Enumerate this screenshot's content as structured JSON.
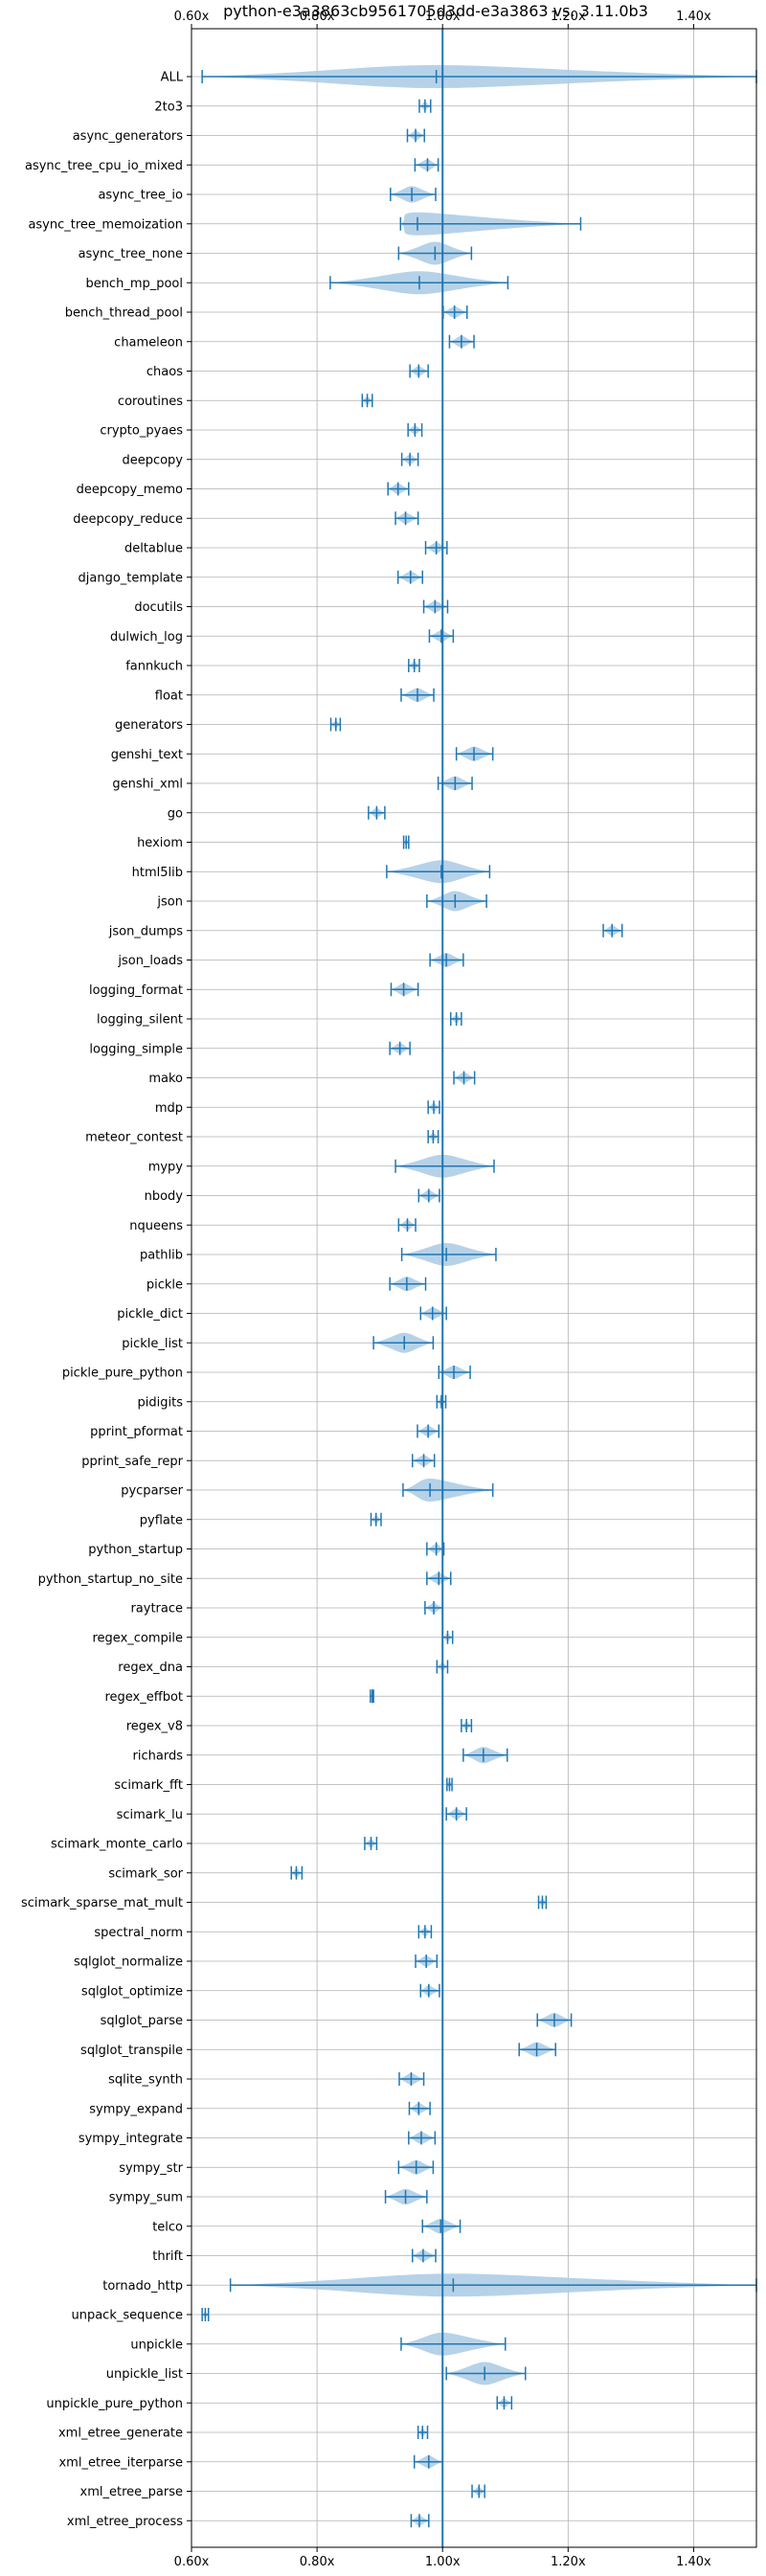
{
  "chart_data": {
    "type": "violin",
    "title": "python-e3a3863cb9561705d3dd-e3a3863 vs. 3.11.0b3",
    "xlim": [
      0.6,
      1.5
    ],
    "xticks": [
      0.6,
      0.8,
      1.0,
      1.2,
      1.4
    ],
    "xtick_labels": [
      "0.60x",
      "0.80x",
      "1.00x",
      "1.20x",
      "1.40x"
    ],
    "reference_line": 1.0,
    "grid": true,
    "colors": {
      "body": "#aecde6",
      "line": "#1f77b4",
      "reference": "#1f77b4"
    },
    "benchmarks": [
      {
        "name": "ALL",
        "min": 0.617,
        "max": 1.5,
        "median": 0.99
      },
      {
        "name": "2to3",
        "min": 0.963,
        "max": 0.981,
        "median": 0.972
      },
      {
        "name": "async_generators",
        "min": 0.944,
        "max": 0.971,
        "median": 0.957
      },
      {
        "name": "async_tree_cpu_io_mixed",
        "min": 0.956,
        "max": 0.993,
        "median": 0.976
      },
      {
        "name": "async_tree_io",
        "min": 0.917,
        "max": 0.989,
        "median": 0.951
      },
      {
        "name": "async_tree_memoization",
        "min": 0.933,
        "max": 1.22,
        "median": 0.96
      },
      {
        "name": "async_tree_none",
        "min": 0.93,
        "max": 1.046,
        "median": 0.988
      },
      {
        "name": "bench_mp_pool",
        "min": 0.821,
        "max": 1.104,
        "median": 0.963
      },
      {
        "name": "bench_thread_pool",
        "min": 1.001,
        "max": 1.039,
        "median": 1.019
      },
      {
        "name": "chameleon",
        "min": 1.011,
        "max": 1.05,
        "median": 1.03
      },
      {
        "name": "chaos",
        "min": 0.948,
        "max": 0.977,
        "median": 0.962
      },
      {
        "name": "coroutines",
        "min": 0.872,
        "max": 0.888,
        "median": 0.88
      },
      {
        "name": "crypto_pyaes",
        "min": 0.945,
        "max": 0.967,
        "median": 0.956
      },
      {
        "name": "deepcopy",
        "min": 0.935,
        "max": 0.961,
        "median": 0.948
      },
      {
        "name": "deepcopy_memo",
        "min": 0.913,
        "max": 0.946,
        "median": 0.929
      },
      {
        "name": "deepcopy_reduce",
        "min": 0.925,
        "max": 0.961,
        "median": 0.941
      },
      {
        "name": "deltablue",
        "min": 0.973,
        "max": 1.007,
        "median": 0.99
      },
      {
        "name": "django_template",
        "min": 0.929,
        "max": 0.968,
        "median": 0.949
      },
      {
        "name": "docutils",
        "min": 0.97,
        "max": 1.008,
        "median": 0.988
      },
      {
        "name": "dulwich_log",
        "min": 0.979,
        "max": 1.017,
        "median": 0.998
      },
      {
        "name": "fannkuch",
        "min": 0.946,
        "max": 0.963,
        "median": 0.955
      },
      {
        "name": "float",
        "min": 0.934,
        "max": 0.986,
        "median": 0.96
      },
      {
        "name": "generators",
        "min": 0.822,
        "max": 0.837,
        "median": 0.83
      },
      {
        "name": "genshi_text",
        "min": 1.022,
        "max": 1.08,
        "median": 1.05
      },
      {
        "name": "genshi_xml",
        "min": 0.993,
        "max": 1.047,
        "median": 1.02
      },
      {
        "name": "go",
        "min": 0.882,
        "max": 0.908,
        "median": 0.895
      },
      {
        "name": "hexiom",
        "min": 0.938,
        "max": 0.946,
        "median": 0.942
      },
      {
        "name": "html5lib",
        "min": 0.911,
        "max": 1.075,
        "median": 0.998
      },
      {
        "name": "json",
        "min": 0.975,
        "max": 1.07,
        "median": 1.02
      },
      {
        "name": "json_dumps",
        "min": 1.256,
        "max": 1.286,
        "median": 1.27
      },
      {
        "name": "json_loads",
        "min": 0.98,
        "max": 1.033,
        "median": 1.006
      },
      {
        "name": "logging_format",
        "min": 0.918,
        "max": 0.961,
        "median": 0.938
      },
      {
        "name": "logging_silent",
        "min": 1.013,
        "max": 1.03,
        "median": 1.022
      },
      {
        "name": "logging_simple",
        "min": 0.916,
        "max": 0.948,
        "median": 0.932
      },
      {
        "name": "mako",
        "min": 1.018,
        "max": 1.051,
        "median": 1.034
      },
      {
        "name": "mdp",
        "min": 0.977,
        "max": 0.995,
        "median": 0.986
      },
      {
        "name": "meteor_contest",
        "min": 0.977,
        "max": 0.993,
        "median": 0.985
      },
      {
        "name": "mypy",
        "min": 0.925,
        "max": 1.082,
        "median": 1.0
      },
      {
        "name": "nbody",
        "min": 0.962,
        "max": 0.995,
        "median": 0.978
      },
      {
        "name": "nqueens",
        "min": 0.93,
        "max": 0.957,
        "median": 0.944
      },
      {
        "name": "pathlib",
        "min": 0.935,
        "max": 1.085,
        "median": 1.006
      },
      {
        "name": "pickle",
        "min": 0.916,
        "max": 0.973,
        "median": 0.943
      },
      {
        "name": "pickle_dict",
        "min": 0.965,
        "max": 1.006,
        "median": 0.984
      },
      {
        "name": "pickle_list",
        "min": 0.89,
        "max": 0.985,
        "median": 0.939
      },
      {
        "name": "pickle_pure_python",
        "min": 0.994,
        "max": 1.044,
        "median": 1.018
      },
      {
        "name": "pidigits",
        "min": 0.991,
        "max": 1.005,
        "median": 0.998
      },
      {
        "name": "pprint_pformat",
        "min": 0.96,
        "max": 0.994,
        "median": 0.977
      },
      {
        "name": "pprint_safe_repr",
        "min": 0.952,
        "max": 0.987,
        "median": 0.97
      },
      {
        "name": "pycparser",
        "min": 0.937,
        "max": 1.08,
        "median": 0.98
      },
      {
        "name": "pyflate",
        "min": 0.886,
        "max": 0.902,
        "median": 0.894
      },
      {
        "name": "python_startup",
        "min": 0.975,
        "max": 1.002,
        "median": 0.99
      },
      {
        "name": "python_startup_no_site",
        "min": 0.975,
        "max": 1.013,
        "median": 0.994
      },
      {
        "name": "raytrace",
        "min": 0.972,
        "max": 1.0,
        "median": 0.986
      },
      {
        "name": "regex_compile",
        "min": 1.0,
        "max": 1.016,
        "median": 1.008
      },
      {
        "name": "regex_dna",
        "min": 0.991,
        "max": 1.008,
        "median": 1.0
      },
      {
        "name": "regex_effbot",
        "min": 0.885,
        "max": 0.89,
        "median": 0.888
      },
      {
        "name": "regex_v8",
        "min": 1.03,
        "max": 1.046,
        "median": 1.038
      },
      {
        "name": "richards",
        "min": 1.033,
        "max": 1.103,
        "median": 1.065
      },
      {
        "name": "scimark_fft",
        "min": 1.007,
        "max": 1.015,
        "median": 1.011
      },
      {
        "name": "scimark_lu",
        "min": 1.006,
        "max": 1.038,
        "median": 1.022
      },
      {
        "name": "scimark_monte_carlo",
        "min": 0.876,
        "max": 0.895,
        "median": 0.886
      },
      {
        "name": "scimark_sor",
        "min": 0.759,
        "max": 0.776,
        "median": 0.767
      },
      {
        "name": "scimark_sparse_mat_mult",
        "min": 1.153,
        "max": 1.165,
        "median": 1.159
      },
      {
        "name": "spectral_norm",
        "min": 0.962,
        "max": 0.982,
        "median": 0.972
      },
      {
        "name": "sqlglot_normalize",
        "min": 0.957,
        "max": 0.991,
        "median": 0.974
      },
      {
        "name": "sqlglot_optimize",
        "min": 0.965,
        "max": 0.995,
        "median": 0.978
      },
      {
        "name": "sqlglot_parse",
        "min": 1.151,
        "max": 1.205,
        "median": 1.178
      },
      {
        "name": "sqlglot_transpile",
        "min": 1.122,
        "max": 1.18,
        "median": 1.15
      },
      {
        "name": "sqlite_synth",
        "min": 0.931,
        "max": 0.97,
        "median": 0.95
      },
      {
        "name": "sympy_expand",
        "min": 0.947,
        "max": 0.98,
        "median": 0.962
      },
      {
        "name": "sympy_integrate",
        "min": 0.946,
        "max": 0.988,
        "median": 0.966
      },
      {
        "name": "sympy_str",
        "min": 0.93,
        "max": 0.985,
        "median": 0.958
      },
      {
        "name": "sympy_sum",
        "min": 0.909,
        "max": 0.975,
        "median": 0.941
      },
      {
        "name": "telco",
        "min": 0.968,
        "max": 1.028,
        "median": 0.997
      },
      {
        "name": "thrift",
        "min": 0.952,
        "max": 0.989,
        "median": 0.969
      },
      {
        "name": "tornado_http",
        "min": 0.662,
        "max": 1.5,
        "median": 1.017
      },
      {
        "name": "unpack_sequence",
        "min": 0.617,
        "max": 0.627,
        "median": 0.622
      },
      {
        "name": "unpickle",
        "min": 0.934,
        "max": 1.1,
        "median": 1.0
      },
      {
        "name": "unpickle_list",
        "min": 1.006,
        "max": 1.132,
        "median": 1.067
      },
      {
        "name": "unpickle_pure_python",
        "min": 1.087,
        "max": 1.11,
        "median": 1.098
      },
      {
        "name": "xml_etree_generate",
        "min": 0.961,
        "max": 0.976,
        "median": 0.968
      },
      {
        "name": "xml_etree_iterparse",
        "min": 0.955,
        "max": 1.0,
        "median": 0.978
      },
      {
        "name": "xml_etree_parse",
        "min": 1.047,
        "max": 1.067,
        "median": 1.058
      },
      {
        "name": "xml_etree_process",
        "min": 0.95,
        "max": 0.978,
        "median": 0.963
      }
    ]
  }
}
